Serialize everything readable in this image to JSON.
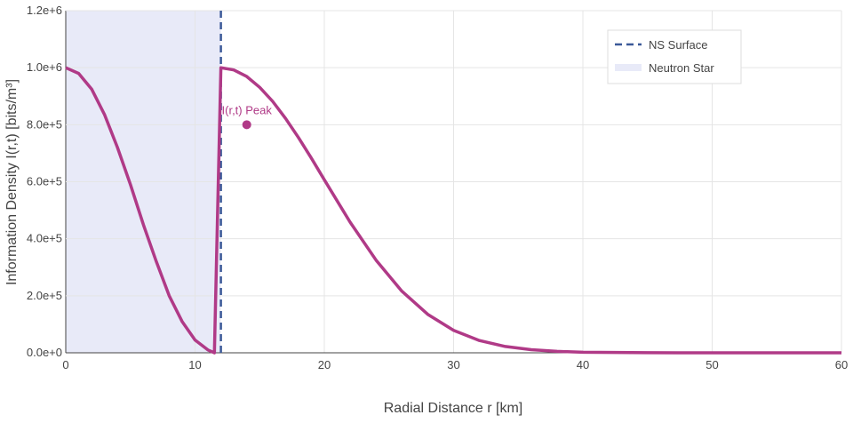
{
  "chart_data": {
    "type": "line",
    "title": "",
    "xlabel": "Radial Distance r [km]",
    "ylabel": "Information Density I(r,t) [bits/m³]",
    "xlim": [
      0,
      60
    ],
    "ylim": [
      0,
      1200000
    ],
    "xticks": [
      0,
      10,
      20,
      30,
      40,
      50,
      60
    ],
    "xtick_labels": [
      "0",
      "10",
      "20",
      "30",
      "40",
      "50",
      "60"
    ],
    "yticks": [
      0,
      200000,
      400000,
      600000,
      800000,
      1000000,
      1200000
    ],
    "ytick_labels": [
      "0.0e+0",
      "2.0e+5",
      "4.0e+5",
      "6.0e+5",
      "8.0e+5",
      "1.0e+6",
      "1.2e+6"
    ],
    "grid": true,
    "legend_position": "top-right",
    "neutron_star_region": {
      "name": "Neutron Star",
      "x": [
        0,
        12
      ],
      "color": "#e8eaf8"
    },
    "ns_surface": {
      "name": "NS Surface",
      "x": 12,
      "color": "#3b5998"
    },
    "series": [
      {
        "color": "#b03a87",
        "x": [
          0,
          1,
          2,
          3,
          4,
          5,
          6,
          7,
          8,
          9,
          10,
          11,
          11.5,
          12,
          13,
          14,
          15,
          16,
          17,
          18,
          19,
          20,
          22,
          24,
          26,
          28,
          30,
          32,
          34,
          36,
          38,
          40,
          45,
          50,
          55,
          60
        ],
        "y": [
          1000000,
          980000,
          925000,
          835000,
          720000,
          590000,
          450000,
          320000,
          200000,
          110000,
          45000,
          10000,
          0,
          1000000,
          992000,
          969000,
          931000,
          882000,
          822000,
          755000,
          683000,
          607000,
          458000,
          325000,
          216000,
          135000,
          79000,
          43000,
          22000,
          11000,
          5000,
          2000,
          200,
          0,
          0,
          0
        ]
      }
    ],
    "annotations": [
      {
        "text": "I(r,t) Peak",
        "x": 14,
        "y": 800000,
        "color": "#b03a87"
      }
    ]
  }
}
